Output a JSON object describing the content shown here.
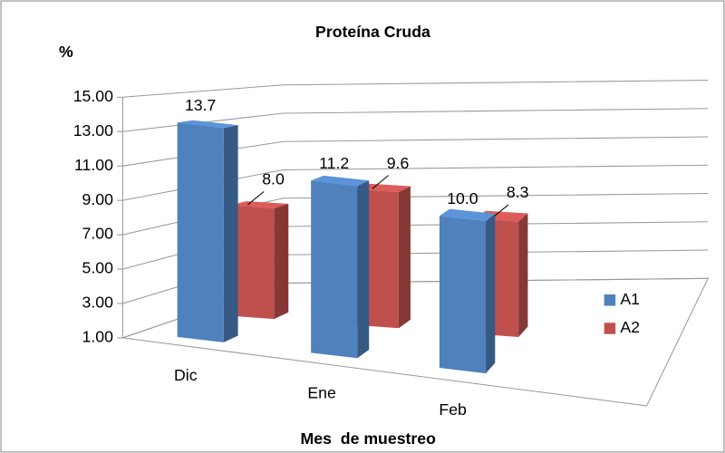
{
  "chart_data": {
    "type": "bar3d",
    "title": "Proteína Cruda",
    "y_label": "%",
    "x_label": "Mes  de muestreo",
    "categories": [
      "Dic",
      "Ene",
      "Feb"
    ],
    "series": [
      {
        "name": "A1",
        "color": "#4f81bd",
        "values": [
          13.7,
          11.2,
          10.0
        ],
        "value_labels": [
          "13.7",
          "11.2",
          "10.0"
        ]
      },
      {
        "name": "A2",
        "color": "#c0504d",
        "values": [
          8.0,
          9.6,
          8.3
        ],
        "value_labels": [
          "8.0",
          "9.6",
          "8.3"
        ]
      }
    ],
    "ylim": [
      1,
      15
    ],
    "yticks": [
      {
        "value": 1,
        "label": "1.00"
      },
      {
        "value": 3,
        "label": "3.00"
      },
      {
        "value": 5,
        "label": "5.00"
      },
      {
        "value": 7,
        "label": "7.00"
      },
      {
        "value": 9,
        "label": "9.00"
      },
      {
        "value": 11,
        "label": "11.00"
      },
      {
        "value": 13,
        "label": "13.00"
      },
      {
        "value": 15,
        "label": "15.00"
      }
    ],
    "grid": true,
    "legend": "right"
  }
}
